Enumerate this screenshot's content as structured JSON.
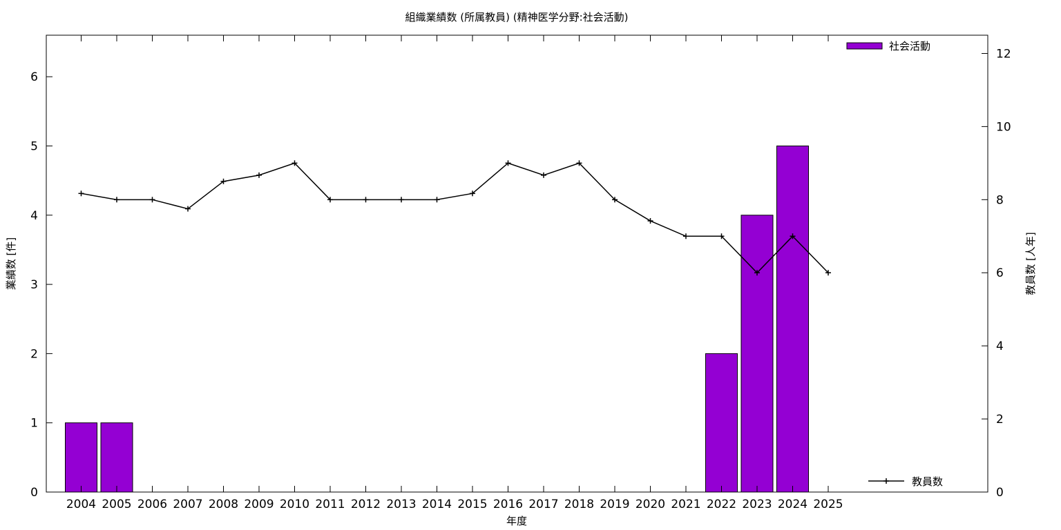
{
  "chart_data": {
    "type": "bar",
    "title": "組織業績数 (所属教員) (精神医学分野:社会活動)",
    "xlabel": "年度",
    "ylabel": "業績数 [件]",
    "y2label": "教員数 [人年]",
    "categories": [
      "2004",
      "2005",
      "2006",
      "2007",
      "2008",
      "2009",
      "2010",
      "2011",
      "2012",
      "2013",
      "2014",
      "2015",
      "2016",
      "2017",
      "2018",
      "2019",
      "2020",
      "2021",
      "2022",
      "2023",
      "2024",
      "2025"
    ],
    "ylim": [
      0,
      6.6
    ],
    "y2lim": [
      0,
      12.5
    ],
    "yticks": [
      0,
      1,
      2,
      3,
      4,
      5,
      6
    ],
    "y2ticks": [
      0,
      2,
      4,
      6,
      8,
      10,
      12
    ],
    "grid": false,
    "series": [
      {
        "name": "社会活動",
        "type": "bar",
        "axis": "left",
        "color": "#9400d3",
        "values": [
          1,
          1,
          0,
          0,
          0,
          0,
          0,
          0,
          0,
          0,
          0,
          0,
          0,
          0,
          0,
          0,
          0,
          0,
          2,
          4,
          5,
          0
        ]
      },
      {
        "name": "教員数",
        "type": "line",
        "axis": "right",
        "color": "#000000",
        "values": [
          8.17,
          8.0,
          8.0,
          7.75,
          8.5,
          8.67,
          9.0,
          8.0,
          8.0,
          8.0,
          8.0,
          8.17,
          9.0,
          8.67,
          9.0,
          8.0,
          7.42,
          7.0,
          7.0,
          6.0,
          7.0,
          6.0
        ]
      }
    ],
    "legend": [
      "top-right",
      "bottom-right"
    ]
  }
}
